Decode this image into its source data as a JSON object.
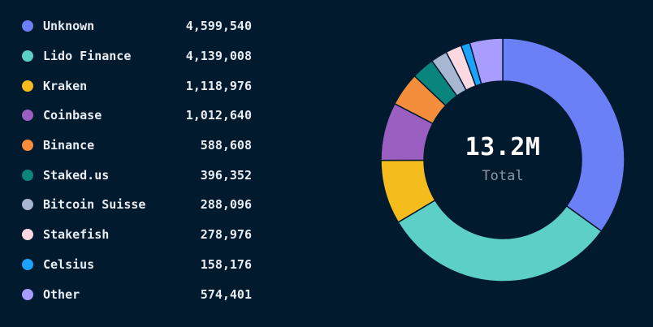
{
  "chart_data": {
    "type": "pie",
    "center_value": "13.2M",
    "center_label": "Total",
    "slices": [
      {
        "label": "Unknown",
        "value": 4599540,
        "display": "4,599,540",
        "color": "#6b7ff7"
      },
      {
        "label": "Lido Finance",
        "value": 4139008,
        "display": "4,139,008",
        "color": "#5ccfc7"
      },
      {
        "label": "Kraken",
        "value": 1118976,
        "display": "1,118,976",
        "color": "#f5bc1d"
      },
      {
        "label": "Coinbase",
        "value": 1012640,
        "display": "1,012,640",
        "color": "#9b5fc2"
      },
      {
        "label": "Binance",
        "value": 588608,
        "display": "588,608",
        "color": "#f58e3c"
      },
      {
        "label": "Staked.us",
        "value": 396352,
        "display": "396,352",
        "color": "#0a857e"
      },
      {
        "label": "Bitcoin Suisse",
        "value": 288096,
        "display": "288,096",
        "color": "#a7b6d1"
      },
      {
        "label": "Stakefish",
        "value": 278976,
        "display": "278,976",
        "color": "#fcd9e1"
      },
      {
        "label": "Celsius",
        "value": 158176,
        "display": "158,176",
        "color": "#1aa3ff"
      },
      {
        "label": "Other",
        "value": 574401,
        "display": "574,401",
        "color": "#a89cff"
      }
    ]
  }
}
